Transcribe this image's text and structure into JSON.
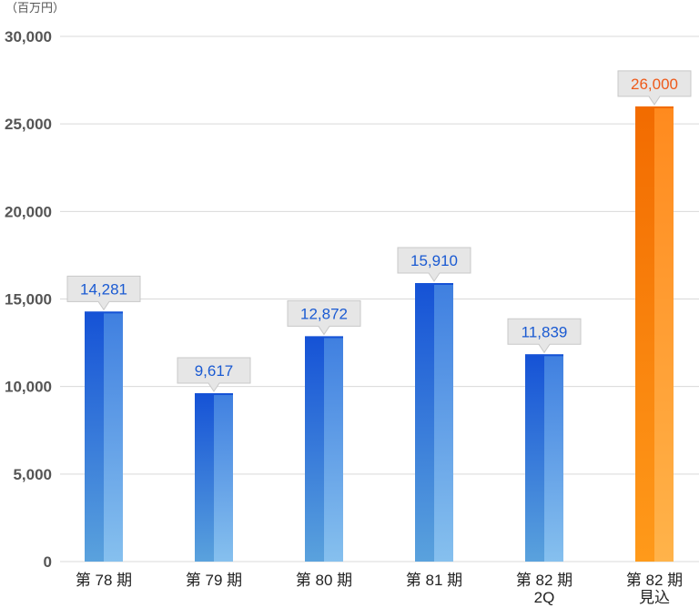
{
  "unit_label": "（百万円）",
  "colors": {
    "blue_dark": "#1552d6",
    "blue_light": "#5aa2dd",
    "orange_dark": "#f26b00",
    "orange_light": "#ff9a1a",
    "label_blue": "#1a5ad2",
    "label_orange": "#ee5a1a",
    "callout_fill": "#e6e6e6",
    "callout_stroke": "#c8c8c8",
    "grid": "#d9d9d9"
  },
  "chart_data": {
    "type": "bar",
    "categories": [
      [
        "第 78 期"
      ],
      [
        "第 79 期"
      ],
      [
        "第 80 期"
      ],
      [
        "第 81 期"
      ],
      [
        "第 82 期",
        "2Q"
      ],
      [
        "第 82 期",
        "見込"
      ]
    ],
    "values": [
      14281,
      9617,
      12872,
      15910,
      11839,
      26000
    ],
    "value_labels": [
      "14,281",
      "9,617",
      "12,872",
      "15,910",
      "11,839",
      "26,000"
    ],
    "highlight": [
      false,
      false,
      false,
      false,
      false,
      true
    ],
    "ylim": [
      0,
      30000
    ],
    "yticks": [
      0,
      5000,
      10000,
      15000,
      20000,
      25000,
      30000
    ],
    "ytick_labels": [
      "0",
      "5,000",
      "10,000",
      "15,000",
      "20,000",
      "25,000",
      "30,000"
    ],
    "grid": true,
    "legend": "none"
  }
}
